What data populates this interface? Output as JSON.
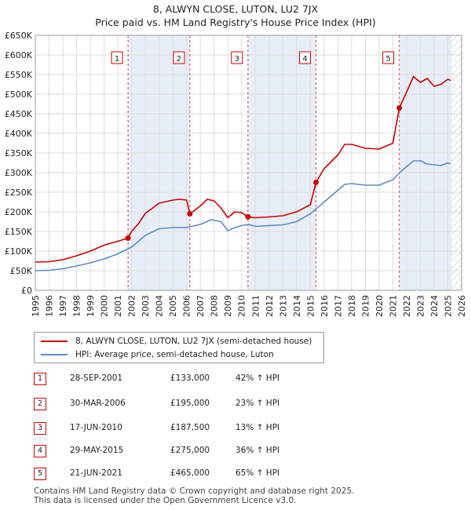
{
  "title_line1": "8, ALWYN CLOSE, LUTON, LU2 7JX",
  "title_line2": "Price paid vs. HM Land Registry's House Price Index (HPI)",
  "colors": {
    "property": "#cc0000",
    "hpi": "#5b8cc4",
    "shade": "#e8eef8",
    "marker_border": "#cc0000"
  },
  "chart_data": {
    "type": "line",
    "xlim": [
      1995,
      2026
    ],
    "ylim": [
      0,
      650000
    ],
    "y_ticks": [
      0,
      50000,
      100000,
      150000,
      200000,
      250000,
      300000,
      350000,
      400000,
      450000,
      500000,
      550000,
      600000,
      650000
    ],
    "y_tick_labels": [
      "£0",
      "£50K",
      "£100K",
      "£150K",
      "£200K",
      "£250K",
      "£300K",
      "£350K",
      "£400K",
      "£450K",
      "£500K",
      "£550K",
      "£600K",
      "£650K"
    ],
    "x_ticks": [
      1995,
      1996,
      1997,
      1998,
      1999,
      2000,
      2001,
      2002,
      2003,
      2004,
      2005,
      2006,
      2007,
      2008,
      2009,
      2010,
      2011,
      2012,
      2013,
      2014,
      2015,
      2016,
      2017,
      2018,
      2019,
      2020,
      2021,
      2022,
      2023,
      2024,
      2025,
      2026
    ],
    "shaded_periods": [
      [
        2001.74,
        2006.24
      ],
      [
        2010.46,
        2015.41
      ],
      [
        2021.47,
        2025.3
      ]
    ],
    "future_hatch_start": 2025.3,
    "series": [
      {
        "name": "8, ALWYN CLOSE, LUTON, LU2 7JX (semi-detached house)",
        "x": [
          1995,
          1996,
          1997,
          1998,
          1999,
          2000,
          2001,
          2001.74,
          2002,
          2002.5,
          2003,
          2004,
          2005,
          2005.5,
          2006,
          2006.24,
          2007,
          2007.5,
          2008,
          2008.5,
          2009,
          2009.5,
          2010,
          2010.46,
          2011,
          2012,
          2013,
          2014,
          2015,
          2015.41,
          2016,
          2017,
          2017.5,
          2018,
          2019,
          2020,
          2021,
          2021.47,
          2022,
          2022.5,
          2023,
          2023.5,
          2024,
          2024.5,
          2025,
          2025.2
        ],
        "values": [
          72000,
          73000,
          78000,
          88000,
          100000,
          115000,
          125000,
          133000,
          150000,
          170000,
          196000,
          222000,
          230000,
          232000,
          230000,
          195000,
          215000,
          232000,
          228000,
          210000,
          185000,
          200000,
          198000,
          187500,
          185000,
          187000,
          190000,
          200000,
          218000,
          275000,
          310000,
          345000,
          372000,
          372000,
          362000,
          360000,
          375000,
          465000,
          505000,
          545000,
          530000,
          540000,
          520000,
          525000,
          538000,
          535000
        ]
      },
      {
        "name": "HPI: Average price, semi-detached house, Luton",
        "x": [
          1995,
          1996,
          1997,
          1998,
          1999,
          2000,
          2001,
          2002,
          2003,
          2004,
          2005,
          2006,
          2007,
          2007.8,
          2008.5,
          2009,
          2009.5,
          2010,
          2010.5,
          2011,
          2012,
          2013,
          2014,
          2015,
          2016,
          2017,
          2017.5,
          2018,
          2019,
          2020,
          2021,
          2021.5,
          2022,
          2022.5,
          2023,
          2023.5,
          2024,
          2024.5,
          2025,
          2025.2
        ],
        "values": [
          50000,
          51000,
          55000,
          62000,
          70000,
          80000,
          93000,
          110000,
          140000,
          157000,
          160000,
          160000,
          168000,
          180000,
          175000,
          152000,
          160000,
          165000,
          168000,
          163000,
          165000,
          167000,
          175000,
          195000,
          225000,
          255000,
          270000,
          272000,
          268000,
          268000,
          282000,
          300000,
          315000,
          330000,
          330000,
          322000,
          320000,
          318000,
          325000,
          322000
        ]
      }
    ],
    "markers": [
      {
        "label": "1",
        "x": 2001.74,
        "y": 133000
      },
      {
        "label": "2",
        "x": 2006.24,
        "y": 195000
      },
      {
        "label": "3",
        "x": 2010.46,
        "y": 187500
      },
      {
        "label": "4",
        "x": 2015.41,
        "y": 275000
      },
      {
        "label": "5",
        "x": 2021.47,
        "y": 465000
      }
    ]
  },
  "legend": {
    "property_label": "8, ALWYN CLOSE, LUTON, LU2 7JX (semi-detached house)",
    "hpi_label": "HPI: Average price, semi-detached house, Luton"
  },
  "transactions": [
    {
      "num": "1",
      "date": "28-SEP-2001",
      "price": "£133,000",
      "hpi": "42% ↑ HPI"
    },
    {
      "num": "2",
      "date": "30-MAR-2006",
      "price": "£195,000",
      "hpi": "23% ↑ HPI"
    },
    {
      "num": "3",
      "date": "17-JUN-2010",
      "price": "£187,500",
      "hpi": "13% ↑ HPI"
    },
    {
      "num": "4",
      "date": "29-MAY-2015",
      "price": "£275,000",
      "hpi": "36% ↑ HPI"
    },
    {
      "num": "5",
      "date": "21-JUN-2021",
      "price": "£465,000",
      "hpi": "65% ↑ HPI"
    }
  ],
  "footer_line1": "Contains HM Land Registry data © Crown copyright and database right 2025.",
  "footer_line2": "This data is licensed under the Open Government Licence v3.0."
}
